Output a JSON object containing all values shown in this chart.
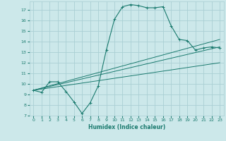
{
  "bg_color": "#cce8ea",
  "grid_color": "#aacfd4",
  "line_color": "#1a7a6e",
  "xlabel": "Humidex (Indice chaleur)",
  "xlim": [
    -0.5,
    23.5
  ],
  "ylim": [
    7,
    17.8
  ],
  "yticks": [
    7,
    8,
    9,
    10,
    11,
    12,
    13,
    14,
    15,
    16,
    17
  ],
  "xticks": [
    0,
    1,
    2,
    3,
    4,
    5,
    6,
    7,
    8,
    9,
    10,
    11,
    12,
    13,
    14,
    15,
    16,
    17,
    18,
    19,
    20,
    21,
    22,
    23
  ],
  "curve1_x": [
    0,
    1,
    2,
    3,
    4,
    5,
    6,
    7,
    8,
    9,
    10,
    11,
    12,
    13,
    14,
    15,
    16,
    17,
    18,
    19,
    20,
    21,
    22,
    23
  ],
  "curve1_y": [
    9.4,
    9.2,
    10.2,
    10.2,
    9.3,
    8.3,
    7.2,
    8.2,
    9.8,
    13.2,
    16.1,
    17.3,
    17.5,
    17.4,
    17.2,
    17.2,
    17.3,
    15.5,
    14.2,
    14.1,
    13.2,
    13.4,
    13.5,
    13.4
  ],
  "line1_x": [
    0,
    23
  ],
  "line1_y": [
    9.4,
    14.2
  ],
  "line2_x": [
    0,
    23
  ],
  "line2_y": [
    9.4,
    13.5
  ],
  "line3_x": [
    0,
    23
  ],
  "line3_y": [
    9.4,
    12.0
  ]
}
